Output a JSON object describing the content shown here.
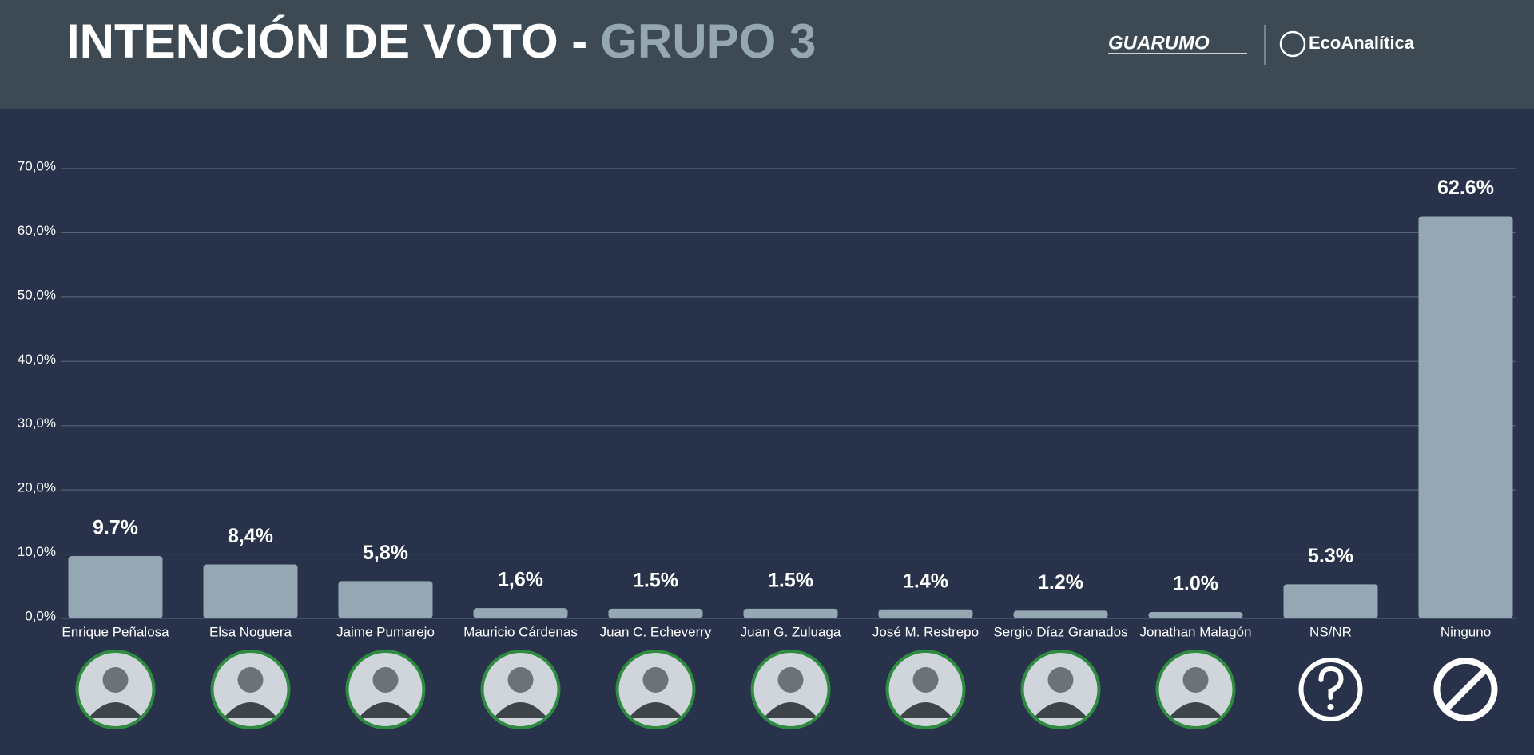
{
  "header": {
    "title": "INTENCIÓN DE VOTO -",
    "title_highlight": "GRUPO 3",
    "logos": [
      "GUARUMO",
      "EcoAnalítica"
    ]
  },
  "chart_data": {
    "type": "bar",
    "color": "#95a7b2",
    "grid": true,
    "categories": [
      "Enrique Peñalosa",
      "Elsa Noguera",
      "Jaime Pumarejo",
      "Mauricio Cárdenas",
      "Juan C. Echeverry",
      "Juan G. Zuluaga",
      "José M. Restrepo",
      "Sergio Díaz Granados",
      "Jonathan Malagón",
      "NS/NR",
      "Ninguno"
    ],
    "values": [
      9.7,
      8.4,
      5.8,
      1.6,
      1.5,
      1.5,
      1.4,
      1.2,
      1.0,
      5.3,
      62.6
    ],
    "value_labels": [
      "9.7%",
      "8,4%",
      "5,8%",
      "1,6%",
      "1.5%",
      "1.5%",
      "1.4%",
      "1.2%",
      "1.0%",
      "5.3%",
      "62.6%"
    ],
    "ylim": [
      0,
      70
    ],
    "yticks": [
      {
        "value": 0,
        "label": "0,0%"
      },
      {
        "value": 10,
        "label": "10,0%"
      },
      {
        "value": 20,
        "label": "20,0%"
      },
      {
        "value": 30,
        "label": "30,0%"
      },
      {
        "value": 40,
        "label": "40,0%"
      },
      {
        "value": 50,
        "label": "50,0%"
      },
      {
        "value": 60,
        "label": "60,0%"
      },
      {
        "value": 70,
        "label": "70,0%"
      }
    ]
  }
}
